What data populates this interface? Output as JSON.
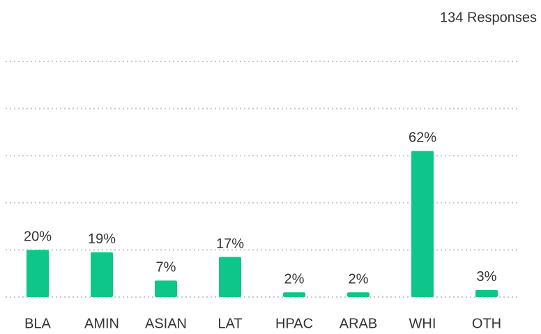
{
  "chart_data": {
    "type": "bar",
    "subtitle": "134 Responses",
    "categories": [
      "BLA",
      "AMIN",
      "ASIAN",
      "LAT",
      "HPAC",
      "ARAB",
      "WHI",
      "OTH"
    ],
    "values": [
      20,
      19,
      7,
      17,
      2,
      2,
      62,
      3
    ],
    "value_labels": [
      "20%",
      "19%",
      "7%",
      "17%",
      "2%",
      "2%",
      "62%",
      "3%"
    ],
    "color": "#0fc68a",
    "ylim": [
      0,
      100
    ],
    "yticks": [
      0,
      20,
      40,
      60,
      80,
      100
    ],
    "grid": true
  }
}
